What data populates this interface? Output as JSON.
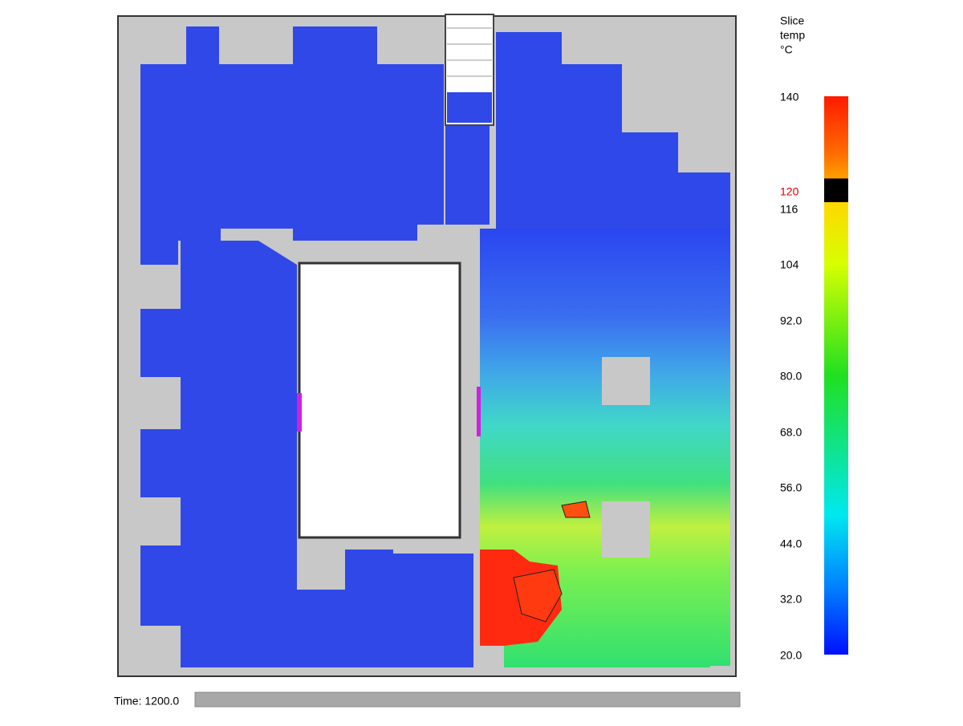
{
  "colorbar": {
    "title": [
      "Slice",
      "temp",
      "°C"
    ],
    "labels": [
      "140",
      "120",
      "116",
      "104",
      "92.0",
      "80.0",
      "68.0",
      "56.0",
      "44.0",
      "32.0",
      "20.0"
    ]
  },
  "time": "Time: 1200.0"
}
